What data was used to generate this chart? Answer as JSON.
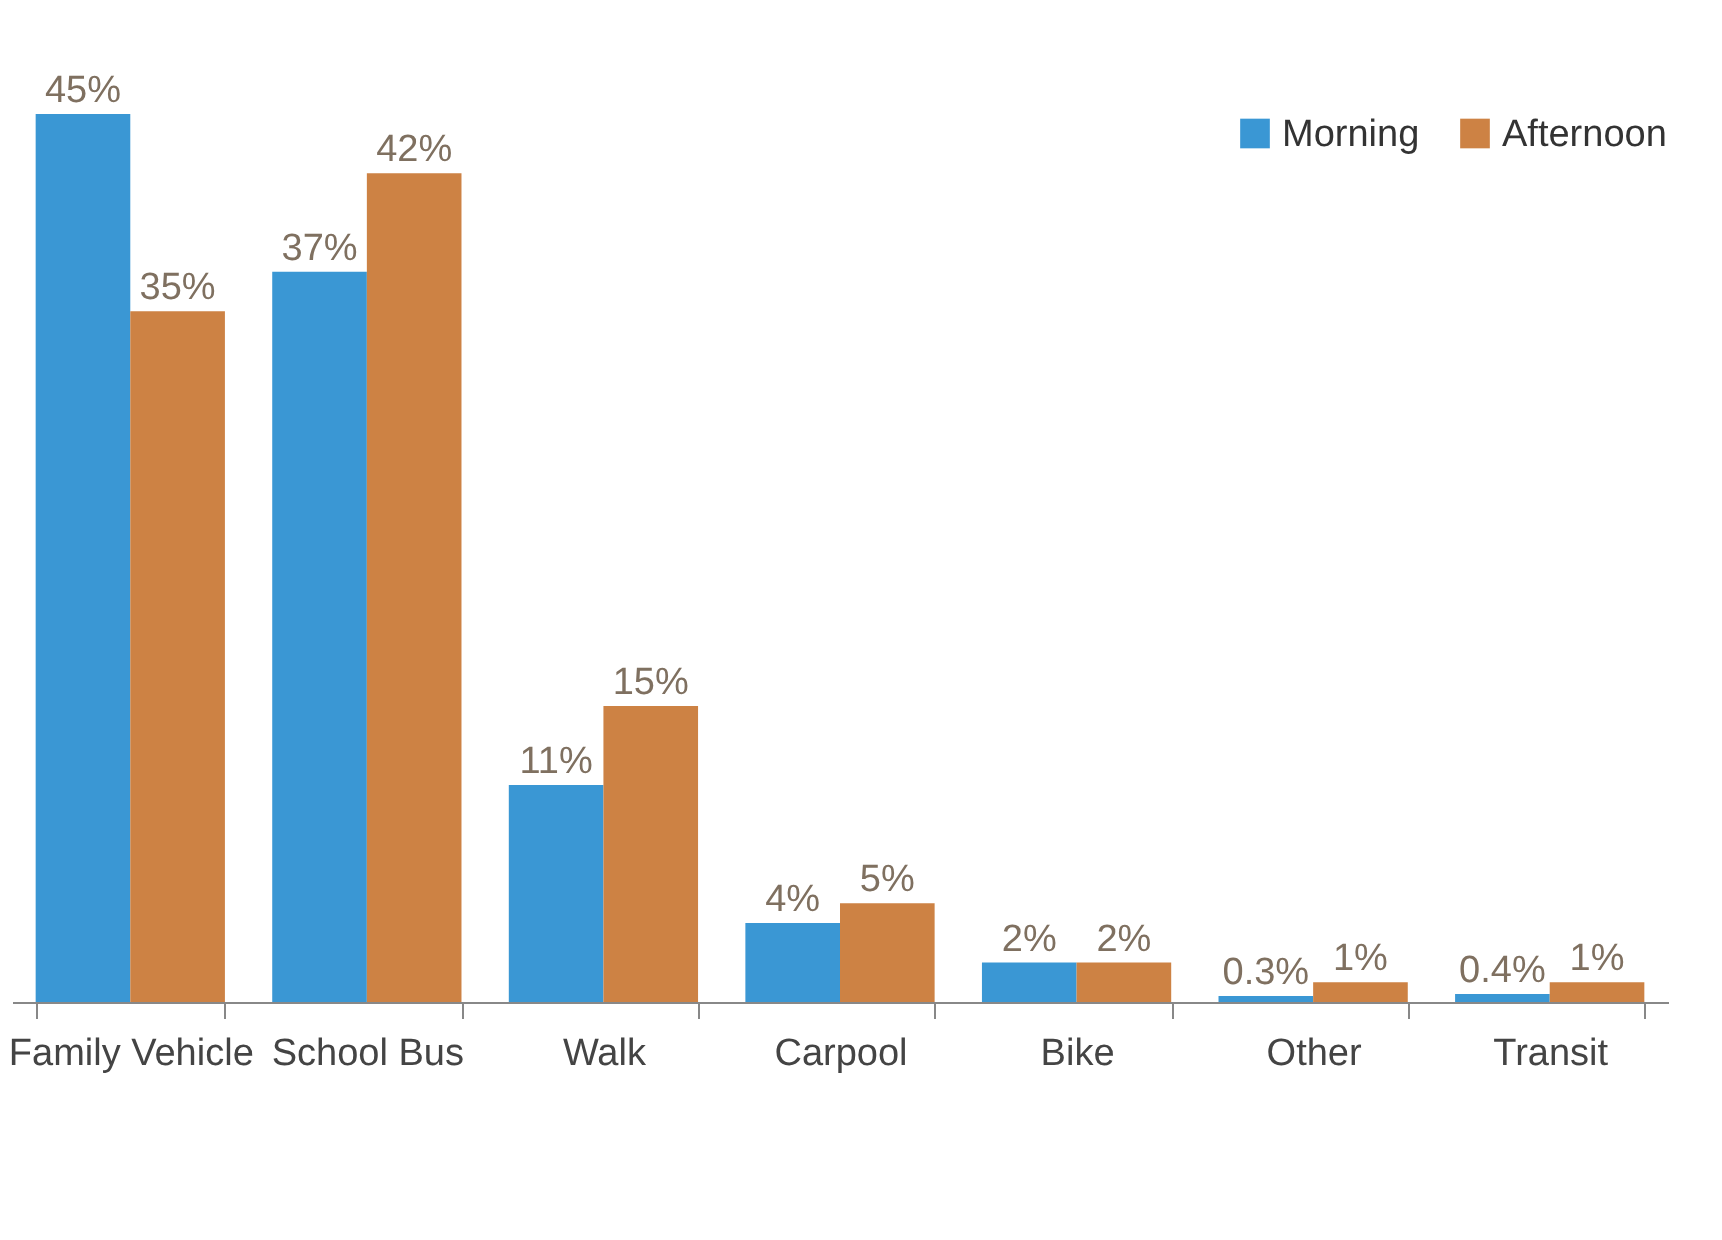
{
  "chart_data": {
    "type": "bar",
    "categories": [
      "Family Vehicle",
      "School Bus",
      "Walk",
      "Carpool",
      "Bike",
      "Other",
      "Transit"
    ],
    "series": [
      {
        "name": "Morning",
        "color": "#3a97d4",
        "values": [
          45,
          37,
          11,
          4,
          2,
          0.3,
          0.4
        ],
        "value_labels": [
          "45%",
          "37%",
          "11%",
          "4%",
          "2%",
          "0.3%",
          "0.4%"
        ]
      },
      {
        "name": "Afternoon",
        "color": "#cd8244",
        "values": [
          35,
          42,
          15,
          5,
          2,
          1,
          1
        ],
        "value_labels": [
          "35%",
          "42%",
          "15%",
          "5%",
          "2%",
          "1%",
          "1%"
        ]
      }
    ],
    "legend": "top right",
    "grid": false,
    "tick_labels": "x"
  }
}
